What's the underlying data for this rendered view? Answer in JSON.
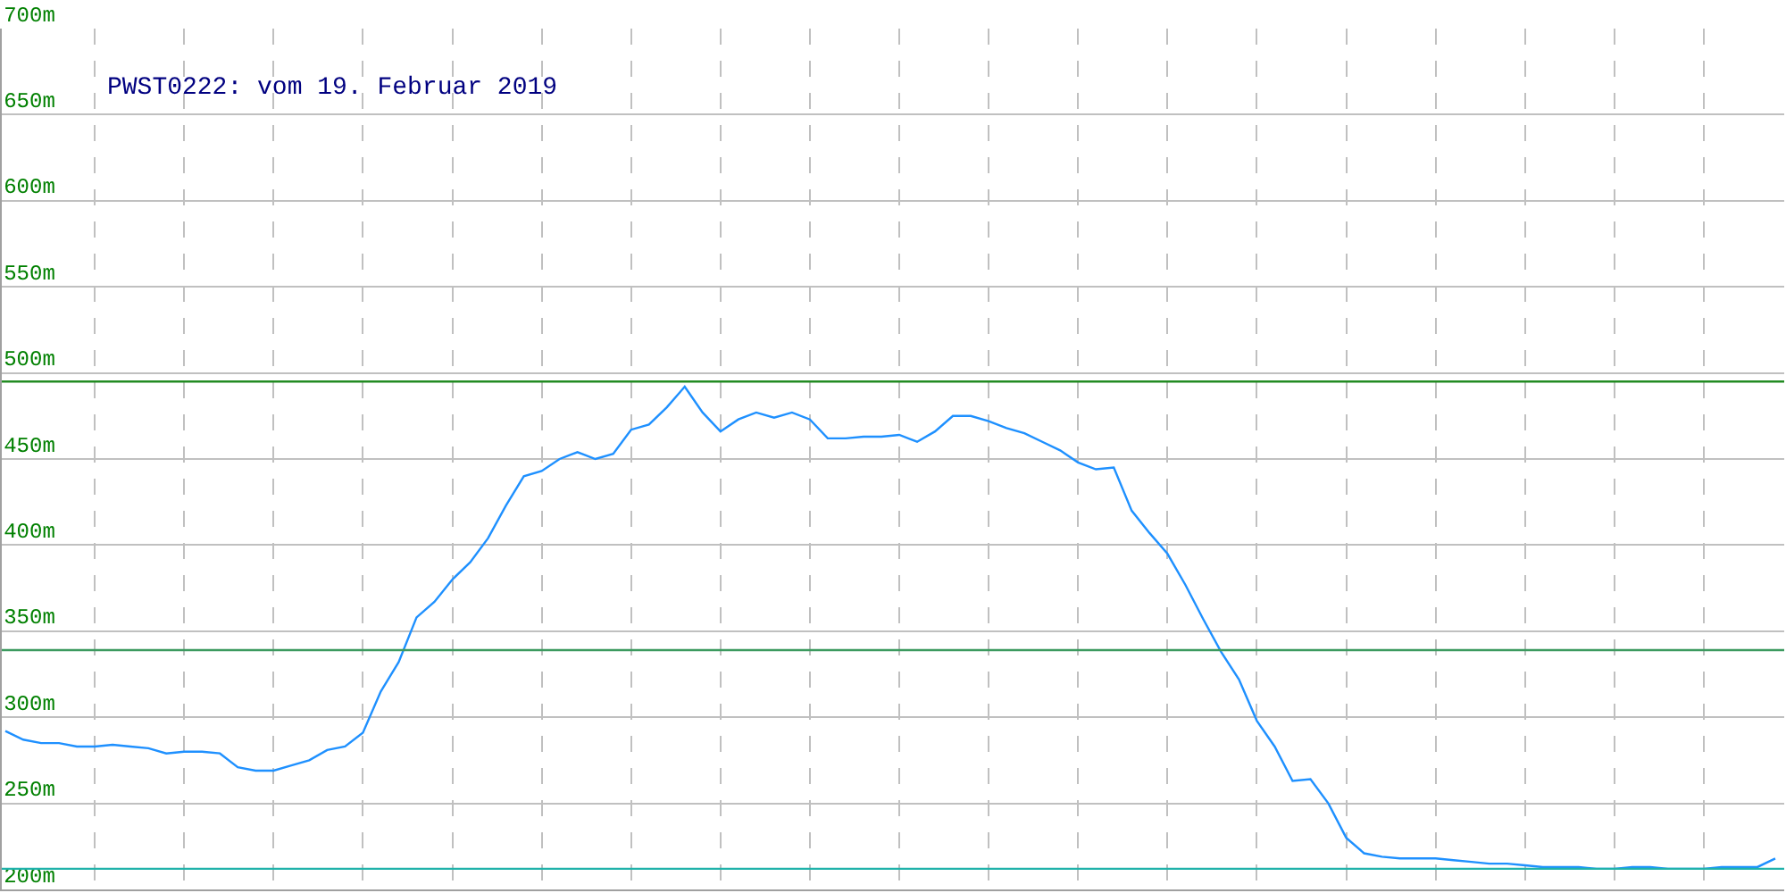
{
  "chart_data": {
    "type": "line",
    "title": "PWST0222: vom 19. Februar 2019",
    "categories": [
      null,
      null,
      null,
      null,
      null,
      null,
      null,
      null,
      null,
      null,
      null,
      null,
      null,
      null,
      null,
      null,
      null,
      null,
      null,
      null,
      null,
      null,
      null,
      null,
      null,
      null,
      null,
      null,
      null,
      null,
      null,
      null,
      null,
      null,
      null,
      null,
      null,
      null,
      null,
      null,
      null,
      null,
      null,
      null,
      null,
      null,
      null,
      null,
      null,
      null,
      null,
      null,
      null,
      null,
      null,
      null,
      null,
      null,
      null,
      null,
      null,
      null,
      null,
      null,
      null,
      null,
      null,
      null,
      null,
      null,
      null,
      null,
      null,
      null,
      null,
      null,
      null,
      null,
      null,
      null,
      null,
      null,
      null,
      null,
      null,
      null,
      null,
      null,
      null,
      null,
      null,
      null,
      null,
      null,
      null,
      null,
      null,
      null,
      null,
      null
    ],
    "series": [
      {
        "color": "#1e90ff",
        "values": [
          292,
          287,
          285,
          285,
          283,
          283,
          284,
          283,
          282,
          279,
          280,
          280,
          279,
          271,
          269,
          269,
          272,
          275,
          281,
          283,
          291,
          315,
          332,
          358,
          367,
          380,
          390,
          404,
          423,
          440,
          443,
          450,
          454,
          450,
          453,
          467,
          470,
          480,
          492,
          477,
          466,
          473,
          477,
          474,
          477,
          473,
          462,
          462,
          463,
          463,
          464,
          460,
          466,
          475,
          475,
          472,
          468,
          465,
          460,
          455,
          448,
          444,
          445,
          420,
          407,
          395,
          377,
          357,
          338,
          322,
          298,
          283,
          263,
          264,
          250,
          230,
          221,
          219,
          218,
          218,
          218,
          217,
          216,
          215,
          215,
          214,
          213,
          213,
          213,
          212,
          212,
          213,
          213,
          212,
          212,
          212,
          213,
          213,
          213,
          218
        ]
      }
    ],
    "ylim": [
      200,
      700
    ],
    "yticks": [
      {
        "value": 200,
        "label": "200m"
      },
      {
        "value": 250,
        "label": "250m"
      },
      {
        "value": 300,
        "label": "300m"
      },
      {
        "value": 350,
        "label": "350m"
      },
      {
        "value": 400,
        "label": "400m"
      },
      {
        "value": 450,
        "label": "450m"
      },
      {
        "value": 500,
        "label": "500m"
      },
      {
        "value": 550,
        "label": "550m"
      },
      {
        "value": 600,
        "label": "600m"
      },
      {
        "value": 650,
        "label": "650m"
      },
      {
        "value": 700,
        "label": "700m"
      }
    ],
    "ref_lines": [
      {
        "axis": "y",
        "value": 495,
        "color": "#228b22"
      },
      {
        "axis": "y",
        "value": 339,
        "color": "#3c9a5f"
      },
      {
        "axis": "y",
        "value": 212,
        "color": "#20b2aa"
      }
    ],
    "grid": true,
    "marker": "none",
    "line_style": "solid"
  }
}
